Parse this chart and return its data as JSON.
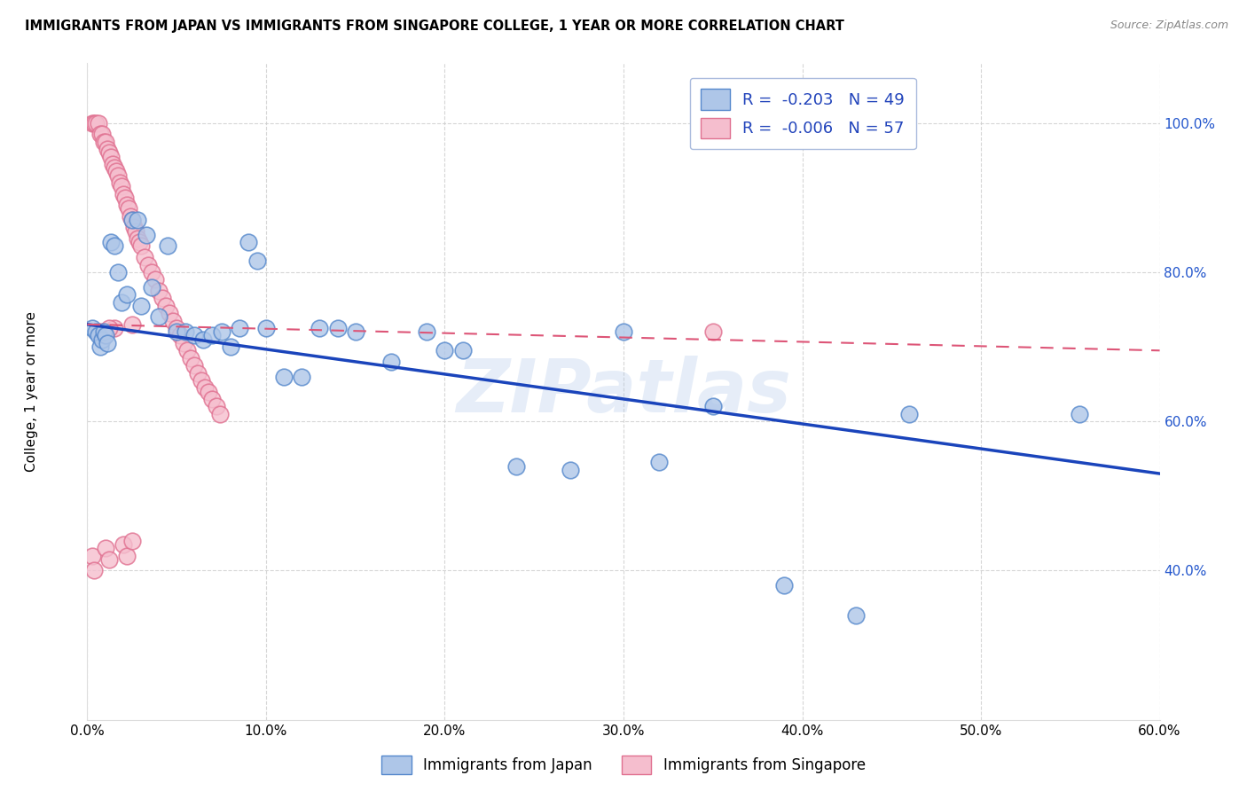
{
  "title": "IMMIGRANTS FROM JAPAN VS IMMIGRANTS FROM SINGAPORE COLLEGE, 1 YEAR OR MORE CORRELATION CHART",
  "source": "Source: ZipAtlas.com",
  "ylabel": "College, 1 year or more",
  "xlim": [
    0.0,
    0.6
  ],
  "ylim": [
    0.2,
    1.08
  ],
  "xtick_vals": [
    0.0,
    0.1,
    0.2,
    0.3,
    0.4,
    0.5,
    0.6
  ],
  "ytick_vals": [
    0.4,
    0.6,
    0.8,
    1.0
  ],
  "R_japan": -0.203,
  "N_japan": 49,
  "R_singapore": -0.006,
  "N_singapore": 57,
  "japan_color": "#aec6e8",
  "japan_edge": "#5588cc",
  "singapore_color": "#f5bece",
  "singapore_edge": "#e07090",
  "trendline_japan_color": "#1a44bb",
  "trendline_singapore_color": "#dd5577",
  "watermark": "ZIPatlas",
  "trendline_japan_x0": 0.0,
  "trendline_japan_y0": 0.73,
  "trendline_japan_x1": 0.6,
  "trendline_japan_y1": 0.53,
  "trendline_sg_x0": 0.0,
  "trendline_sg_y0": 0.73,
  "trendline_sg_x1": 0.6,
  "trendline_sg_y1": 0.695,
  "japan_x": [
    0.003,
    0.005,
    0.006,
    0.007,
    0.008,
    0.009,
    0.01,
    0.011,
    0.013,
    0.015,
    0.017,
    0.019,
    0.022,
    0.025,
    0.028,
    0.03,
    0.033,
    0.036,
    0.04,
    0.045,
    0.05,
    0.055,
    0.06,
    0.065,
    0.07,
    0.075,
    0.08,
    0.085,
    0.09,
    0.095,
    0.1,
    0.11,
    0.12,
    0.13,
    0.14,
    0.15,
    0.17,
    0.19,
    0.2,
    0.21,
    0.24,
    0.27,
    0.3,
    0.32,
    0.35,
    0.39,
    0.43,
    0.46,
    0.555
  ],
  "japan_y": [
    0.725,
    0.72,
    0.715,
    0.7,
    0.71,
    0.72,
    0.715,
    0.705,
    0.84,
    0.835,
    0.8,
    0.76,
    0.77,
    0.87,
    0.87,
    0.755,
    0.85,
    0.78,
    0.74,
    0.835,
    0.72,
    0.72,
    0.715,
    0.71,
    0.715,
    0.72,
    0.7,
    0.725,
    0.84,
    0.815,
    0.725,
    0.66,
    0.66,
    0.725,
    0.725,
    0.72,
    0.68,
    0.72,
    0.695,
    0.695,
    0.54,
    0.535,
    0.72,
    0.545,
    0.62,
    0.38,
    0.34,
    0.61,
    0.61
  ],
  "singapore_x": [
    0.003,
    0.004,
    0.005,
    0.006,
    0.007,
    0.008,
    0.009,
    0.01,
    0.011,
    0.012,
    0.013,
    0.014,
    0.015,
    0.016,
    0.017,
    0.018,
    0.019,
    0.02,
    0.021,
    0.022,
    0.023,
    0.024,
    0.025,
    0.026,
    0.027,
    0.028,
    0.029,
    0.03,
    0.032,
    0.034,
    0.036,
    0.038,
    0.04,
    0.042,
    0.044,
    0.046,
    0.048,
    0.05,
    0.052,
    0.054,
    0.056,
    0.058,
    0.06,
    0.062,
    0.064,
    0.066,
    0.068,
    0.07,
    0.072,
    0.074,
    0.015,
    0.025,
    0.008,
    0.012,
    0.006,
    0.009,
    0.35
  ],
  "singapore_y": [
    1.0,
    1.0,
    1.0,
    1.0,
    0.985,
    0.985,
    0.975,
    0.975,
    0.965,
    0.96,
    0.955,
    0.945,
    0.94,
    0.935,
    0.93,
    0.92,
    0.915,
    0.905,
    0.9,
    0.89,
    0.885,
    0.875,
    0.87,
    0.86,
    0.855,
    0.845,
    0.84,
    0.835,
    0.82,
    0.81,
    0.8,
    0.79,
    0.775,
    0.765,
    0.755,
    0.745,
    0.735,
    0.725,
    0.715,
    0.705,
    0.695,
    0.685,
    0.675,
    0.665,
    0.655,
    0.645,
    0.64,
    0.63,
    0.62,
    0.61,
    0.725,
    0.73,
    0.72,
    0.725,
    0.72,
    0.715,
    0.72
  ],
  "sg_extra_low_x": [
    0.003,
    0.004,
    0.01,
    0.012,
    0.02,
    0.022,
    0.025
  ],
  "sg_extra_low_y": [
    0.42,
    0.4,
    0.43,
    0.415,
    0.435,
    0.42,
    0.44
  ]
}
